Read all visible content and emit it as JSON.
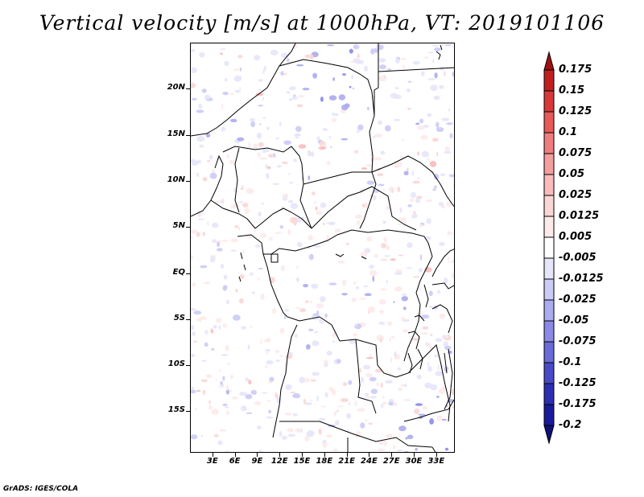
{
  "title": "Vertical velocity [m/s] at 1000hPa, VT: 2019101106",
  "credit": "GrADS: IGES/COLA",
  "map": {
    "lon_range": [
      0,
      35.5
    ],
    "lat_range": [
      -19.5,
      25
    ],
    "lat_ticks": [
      {
        "value": 20,
        "label": "20N"
      },
      {
        "value": 15,
        "label": "15N"
      },
      {
        "value": 10,
        "label": "10N"
      },
      {
        "value": 5,
        "label": "5N"
      },
      {
        "value": 0,
        "label": "EQ"
      },
      {
        "value": -5,
        "label": "5S"
      },
      {
        "value": -10,
        "label": "10S"
      },
      {
        "value": -15,
        "label": "15S"
      }
    ],
    "lon_ticks": [
      {
        "value": 3,
        "label": "3E"
      },
      {
        "value": 6,
        "label": "6E"
      },
      {
        "value": 9,
        "label": "9E"
      },
      {
        "value": 12,
        "label": "12E"
      },
      {
        "value": 15,
        "label": "15E"
      },
      {
        "value": 18,
        "label": "18E"
      },
      {
        "value": 21,
        "label": "21E"
      },
      {
        "value": 24,
        "label": "24E"
      },
      {
        "value": 27,
        "label": "27E"
      },
      {
        "value": 30,
        "label": "30E"
      },
      {
        "value": 33,
        "label": "33E"
      }
    ]
  },
  "colorbar": {
    "levels": [
      "0.175",
      "0.15",
      "0.125",
      "0.1",
      "0.075",
      "0.05",
      "0.025",
      "0.0125",
      "0.005",
      "-0.005",
      "-0.0125",
      "-0.025",
      "-0.05",
      "-0.075",
      "-0.1",
      "-0.125",
      "-0.175",
      "-0.2"
    ],
    "colors": [
      "#a01010",
      "#c02020",
      "#d83838",
      "#e85a5a",
      "#f07d7d",
      "#f49e9e",
      "#f8bcbc",
      "#fbd6d6",
      "#fdeaea",
      "#ffffff",
      "#e6e6fb",
      "#cbcbf6",
      "#ababf0",
      "#8a8ae6",
      "#6a6ad8",
      "#4a4ac8",
      "#2e2eb4",
      "#1a1a9a",
      "#10107a"
    ]
  }
}
